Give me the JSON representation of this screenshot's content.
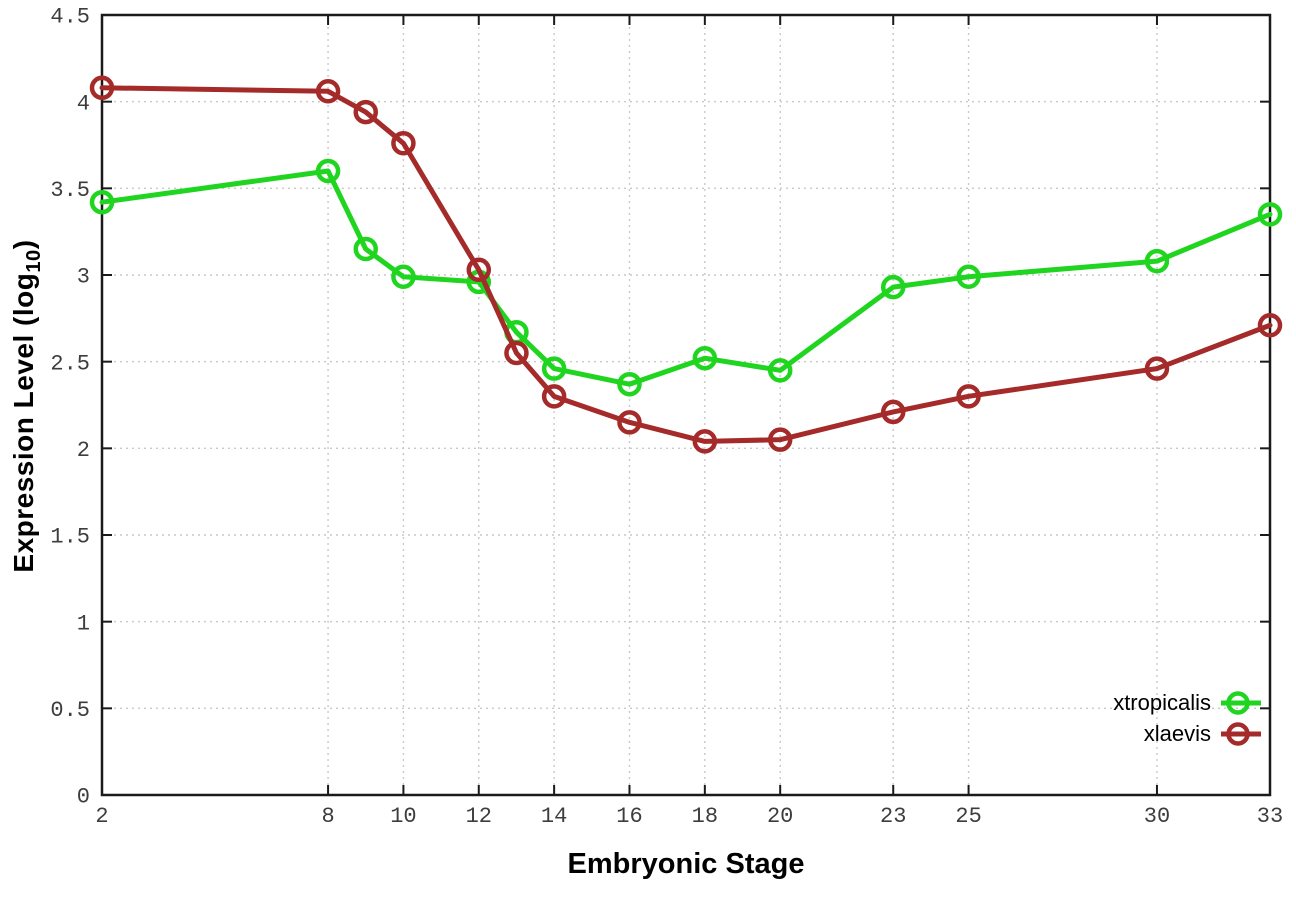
{
  "chart_data": {
    "type": "line",
    "title": "",
    "xlabel": "Embryonic Stage",
    "ylabel": "Expression Level (log10)",
    "ylabel_parts": {
      "main": "Expression Level (log",
      "sub": "10",
      "close": ")"
    },
    "x": [
      2,
      8,
      9,
      10,
      12,
      13,
      14,
      16,
      18,
      20,
      23,
      25,
      30,
      33
    ],
    "series": [
      {
        "name": "xtropicalis",
        "color": "#1fd51f",
        "values": [
          3.42,
          3.6,
          3.15,
          2.99,
          2.96,
          2.67,
          2.46,
          2.37,
          2.52,
          2.45,
          2.93,
          2.99,
          3.08,
          3.35
        ]
      },
      {
        "name": "xlaevis",
        "color": "#a52a2a",
        "values": [
          4.08,
          4.06,
          3.94,
          3.76,
          3.03,
          2.55,
          2.3,
          2.15,
          2.04,
          2.05,
          2.21,
          2.3,
          2.46,
          2.71
        ]
      }
    ],
    "xlim": [
      2,
      33
    ],
    "ylim": [
      0,
      4.5
    ],
    "x_ticks": [
      2,
      8,
      10,
      12,
      14,
      16,
      18,
      20,
      23,
      25,
      30,
      33
    ],
    "x_tick_labels": [
      "2",
      "8",
      "10",
      "12",
      "14",
      "16",
      "18",
      "20",
      "23",
      "25",
      "30",
      "33"
    ],
    "y_ticks": [
      0,
      0.5,
      1,
      1.5,
      2,
      2.5,
      3,
      3.5,
      4,
      4.5
    ],
    "y_tick_labels": [
      "0",
      "0.5",
      "1",
      "1.5",
      "2",
      "2.5",
      "3",
      "3.5",
      "4",
      "4.5"
    ],
    "grid": true,
    "legend_position": "bottom-right",
    "colors": {
      "grid": "#c9c9c9",
      "border": "#1a1a1a",
      "tick_label": "#3d3d3d"
    }
  }
}
